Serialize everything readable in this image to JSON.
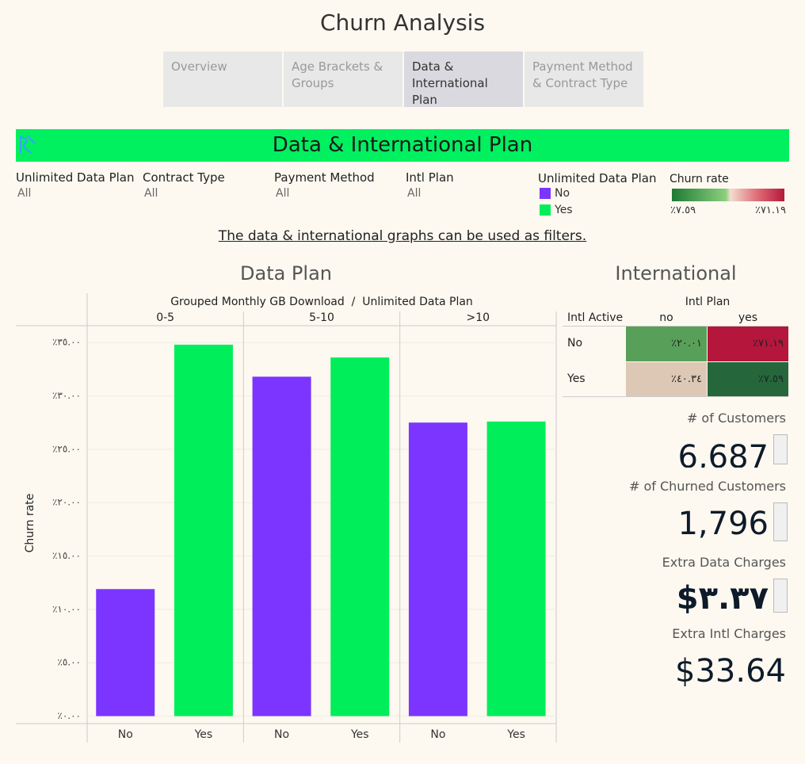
{
  "header": {
    "title": "Churn Analysis",
    "tabs": [
      "Overview",
      "Age Brackets & Groups",
      "Data & International Plan",
      "Payment Method & Contract Type"
    ],
    "active_tab": 2
  },
  "banner": {
    "title": "Data & International Plan"
  },
  "filters": [
    {
      "label": "Unlimited Data Plan",
      "value": "All"
    },
    {
      "label": "Contract Type",
      "value": "All"
    },
    {
      "label": "Payment Method",
      "value": "All"
    },
    {
      "label": "Intl Plan",
      "value": "All"
    }
  ],
  "churn_legend": {
    "title": "Churn rate",
    "min_label": "٪٧.٥٩",
    "max_label": "٪٧١.١٩"
  },
  "note": "The data & international graphs can be used as filters.",
  "chart_data": {
    "type": "bar",
    "title": "Data Plan",
    "x_label": "Grouped Monthly GB Download  /  Unlimited Data Plan",
    "y_label": "Churn rate",
    "legend_title": "Unlimited Data Plan",
    "categories": [
      "0-5",
      "5-10",
      ">10"
    ],
    "series": [
      {
        "name": "No",
        "color": "#7b35ff",
        "values": [
          11.9,
          31.8,
          27.5
        ]
      },
      {
        "name": "Yes",
        "color": "#00ee5a",
        "values": [
          34.8,
          33.6,
          27.6
        ]
      }
    ],
    "ylim": [
      -0.7,
      36.5
    ],
    "yticks": [
      {
        "value": 0,
        "label": "٪٠.٠٠"
      },
      {
        "value": 5,
        "label": "٪٥.٠٠"
      },
      {
        "value": 10,
        "label": "٪١٠.٠٠"
      },
      {
        "value": 15,
        "label": "٪١٥.٠٠"
      },
      {
        "value": 20,
        "label": "٪٢٠.٠٠"
      },
      {
        "value": 25,
        "label": "٪٢٥.٠٠"
      },
      {
        "value": 30,
        "label": "٪٣٠.٠٠"
      },
      {
        "value": 35,
        "label": "٪٣٥.٠٠"
      }
    ],
    "grid": true
  },
  "international": {
    "title": "International",
    "column_header": "Intl Plan",
    "row_header": "Intl Active",
    "columns": [
      "no",
      "yes"
    ],
    "rows": [
      {
        "label": "No",
        "cells": [
          {
            "label": "٪٢٠.٠١",
            "color": "#58a05a"
          },
          {
            "label": "٪٧١.١٩",
            "color": "#b5163c"
          }
        ]
      },
      {
        "label": "Yes",
        "cells": [
          {
            "label": "٪٤٠.٣٤",
            "color": "#dcc8b4"
          },
          {
            "label": "٪٧.٥٩",
            "color": "#25673b"
          }
        ]
      }
    ]
  },
  "kpis": [
    {
      "label": "# of Customers",
      "value": "6,687"
    },
    {
      "label": "# of Churned Customers",
      "value": "1,796"
    },
    {
      "label": "Extra Data Charges",
      "value": "$٣.٣٧"
    },
    {
      "label": "Extra Intl Charges",
      "value": "$33.64"
    }
  ]
}
